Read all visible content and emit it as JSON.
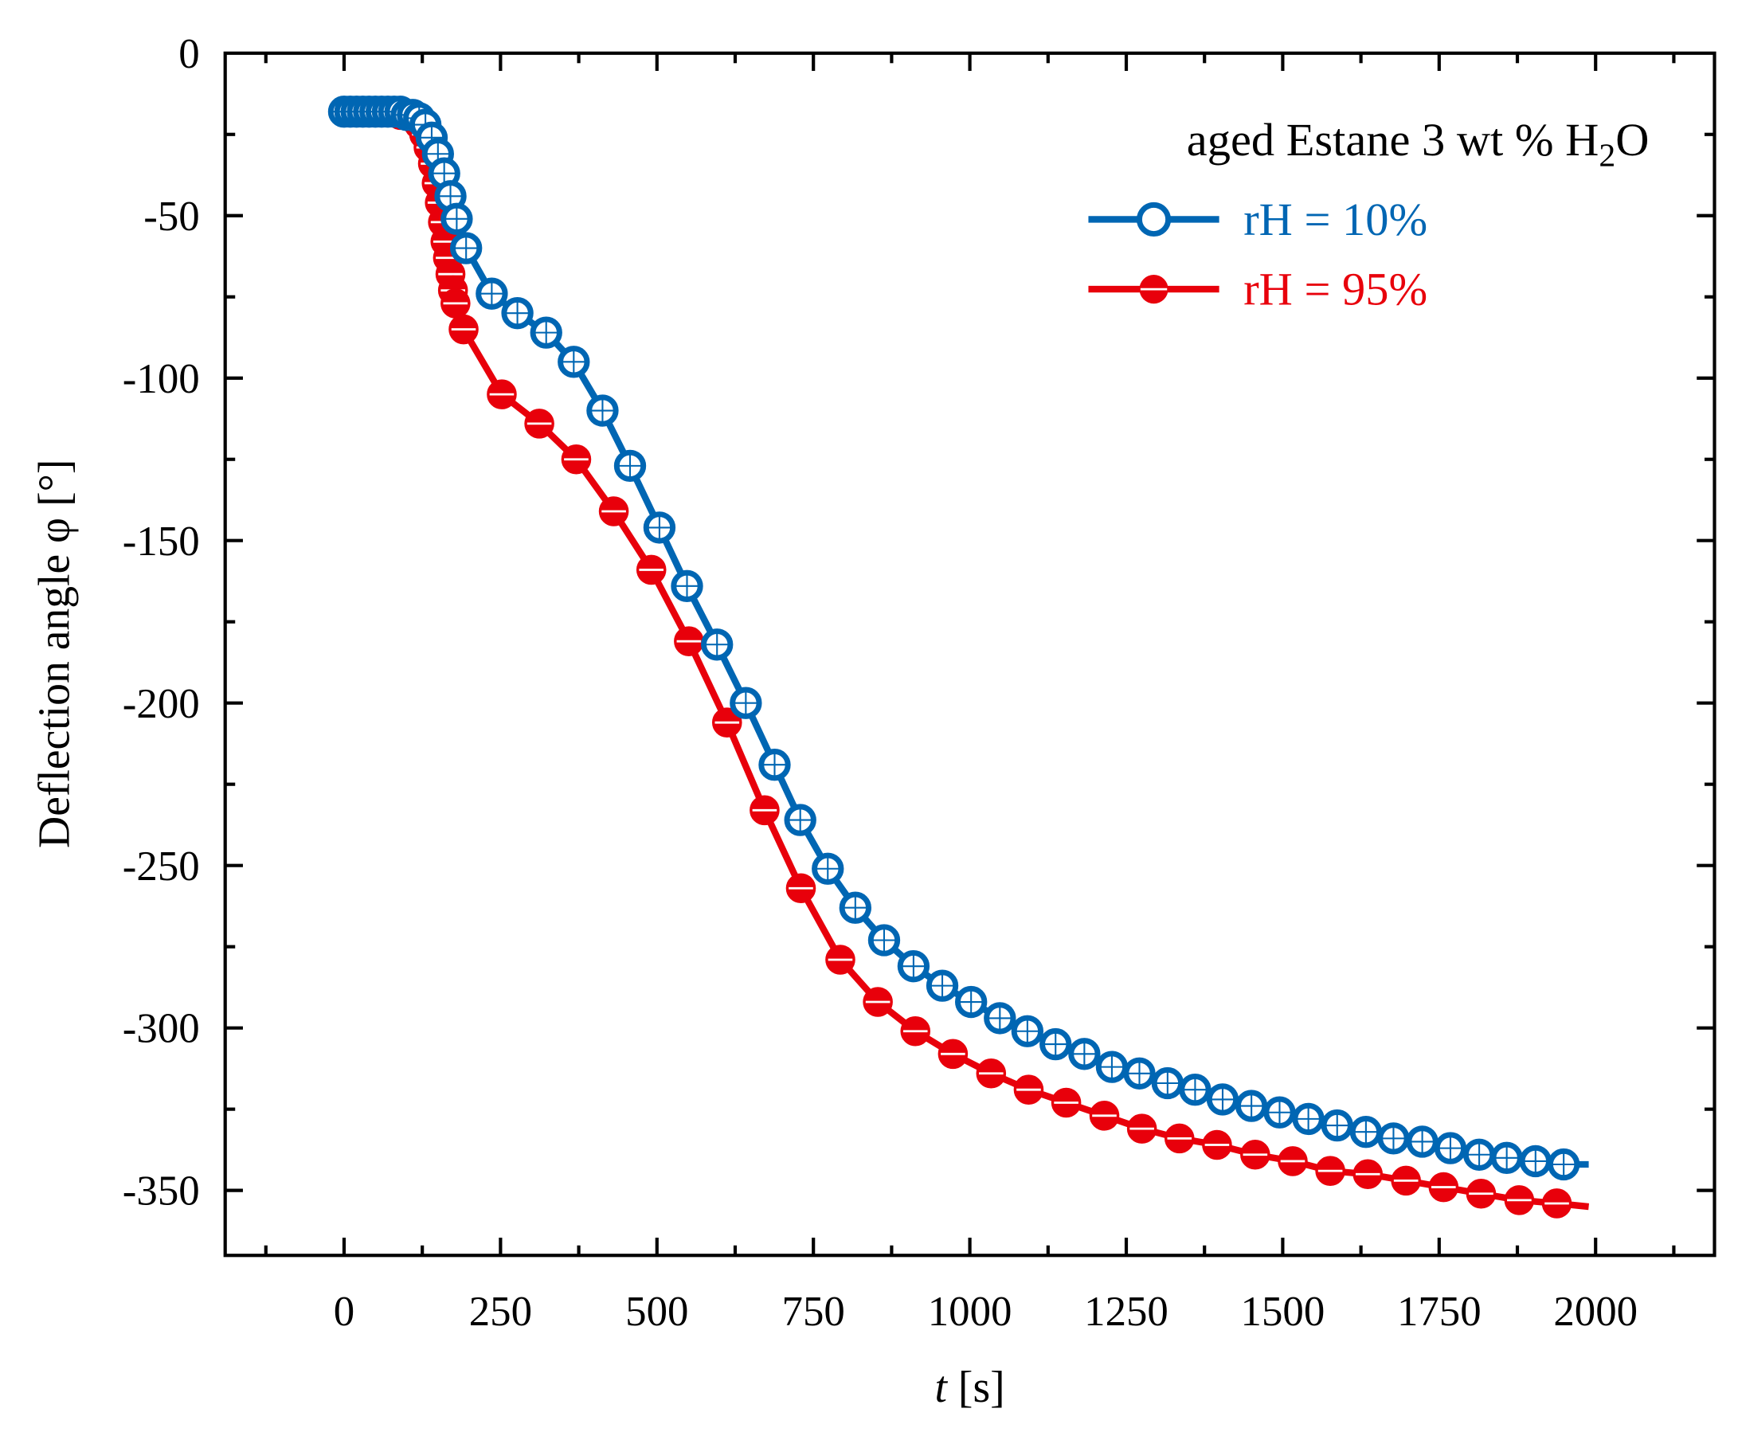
{
  "chart_data": {
    "type": "line",
    "title": "",
    "annotation": "aged Estane 3 wt % H2O",
    "annotation_parts": {
      "pre": "aged Estane 3 wt % H",
      "sub": "2",
      "post": "O"
    },
    "xlabel": "t",
    "xlabel_unit": "[s]",
    "ylabel": "Deflection angle φ [°]",
    "xlim": [
      -190,
      2190
    ],
    "ylim": [
      -370,
      0
    ],
    "xticks": [
      0,
      250,
      500,
      750,
      1000,
      1250,
      1500,
      1750,
      2000
    ],
    "xtick_labels": [
      "0",
      "250",
      "500",
      "750",
      "1000",
      "1250",
      "1500",
      "1750",
      "2000"
    ],
    "yticks": [
      0,
      -50,
      -100,
      -150,
      -200,
      -250,
      -300,
      -350
    ],
    "ytick_labels": [
      "0",
      "-50",
      "-100",
      "-150",
      "-200",
      "-250",
      "-300",
      "-350"
    ],
    "grid": false,
    "legend_position": "top-right",
    "series": [
      {
        "name": "rH = 10%",
        "color": "#0066b3",
        "marker": "open-circle-cross",
        "line_end": [
          1989,
          -342
        ],
        "x": [
          0,
          10,
          20,
          30,
          40,
          50,
          60,
          70,
          80,
          90,
          100,
          110,
          120,
          130,
          140,
          150,
          160,
          170,
          180,
          195,
          236,
          277,
          323,
          367,
          413,
          457,
          504,
          548,
          596,
          642,
          688,
          729,
          773,
          817,
          863,
          910,
          956,
          1002,
          1048,
          1092,
          1137,
          1183,
          1227,
          1271,
          1316,
          1360,
          1404,
          1450,
          1495,
          1541,
          1587,
          1633,
          1677,
          1723,
          1768,
          1814,
          1858,
          1904,
          1949
        ],
        "y": [
          -18,
          -18,
          -18,
          -18,
          -18,
          -18,
          -18,
          -18,
          -18,
          -18,
          -19,
          -19,
          -20,
          -22,
          -26,
          -31,
          -37,
          -44,
          -51,
          -60,
          -74,
          -80,
          -86,
          -95,
          -110,
          -127,
          -146,
          -164,
          -182,
          -200,
          -219,
          -236,
          -251,
          -263,
          -273,
          -281,
          -287,
          -292,
          -297,
          -301,
          -305,
          -308,
          -312,
          -314,
          -317,
          -319,
          -322,
          -324,
          -326,
          -328,
          -330,
          -332,
          -334,
          -335,
          -337,
          -339,
          -340,
          -341,
          -342
        ]
      },
      {
        "name": "rH = 95%",
        "color": "#e8000b",
        "marker": "filled-circle-line",
        "line_end": [
          1989,
          -355
        ],
        "x": [
          0,
          10,
          20,
          30,
          40,
          50,
          60,
          70,
          80,
          90,
          100,
          110,
          120,
          128,
          135,
          142,
          148,
          153,
          158,
          162,
          166,
          170,
          174,
          178,
          191,
          252,
          312,
          371,
          431,
          491,
          551,
          612,
          672,
          730,
          793,
          853,
          913,
          973,
          1034,
          1094,
          1154,
          1215,
          1275,
          1335,
          1395,
          1456,
          1516,
          1576,
          1636,
          1697,
          1757,
          1817,
          1878,
          1938
        ],
        "y": [
          -18,
          -18,
          -18,
          -18,
          -18,
          -18,
          -18,
          -18,
          -18,
          -19,
          -19,
          -20,
          -22,
          -25,
          -29,
          -34,
          -40,
          -46,
          -52,
          -58,
          -63,
          -68,
          -73,
          -77,
          -85,
          -105,
          -114,
          -125,
          -141,
          -159,
          -181,
          -206,
          -233,
          -257,
          -279,
          -292,
          -301,
          -308,
          -314,
          -319,
          -323,
          -327,
          -331,
          -334,
          -336,
          -339,
          -341,
          -344,
          -345,
          -347,
          -349,
          -351,
          -353,
          -354
        ]
      }
    ]
  }
}
